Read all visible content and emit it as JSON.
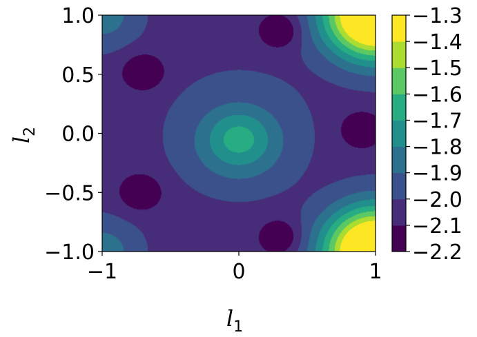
{
  "chart_data": {
    "type": "contourf",
    "title": "",
    "xlabel": "l",
    "xlabel_subscript": "1",
    "ylabel": "l",
    "ylabel_subscript": "2",
    "xlim": [
      -1.0,
      1.0
    ],
    "ylim": [
      -1.0,
      1.0
    ],
    "x_ticks": [
      -1,
      0,
      1
    ],
    "x_tick_labels": [
      "−1",
      "0",
      "1"
    ],
    "y_ticks": [
      -1.0,
      -0.5,
      0.0,
      0.5,
      1.0
    ],
    "y_tick_labels": [
      "−1.0",
      "−0.5",
      "0.0",
      "0.5",
      "1.0"
    ],
    "colorbar": {
      "levels": [
        -2.2,
        -2.1,
        -2.0,
        -1.9,
        -1.8,
        -1.7,
        -1.6,
        -1.5,
        -1.4,
        -1.3
      ],
      "tick_labels": [
        "−2.2",
        "−2.1",
        "−2.0",
        "−1.9",
        "−1.8",
        "−1.7",
        "−1.6",
        "−1.5",
        "−1.4",
        "−1.3"
      ],
      "colors": [
        "#440154",
        "#472c7a",
        "#3b518b",
        "#2c718e",
        "#21908d",
        "#27ad81",
        "#5cc863",
        "#aadc32",
        "#fde725"
      ]
    },
    "contour_features": {
      "central_max": {
        "center": [
          0.0,
          -0.05
        ],
        "value": -1.65
      },
      "minima": [
        {
          "center": [
            0.3,
            0.87
          ],
          "value": -2.15
        },
        {
          "center": [
            -0.7,
            0.52
          ],
          "value": -2.15
        },
        {
          "center": [
            -0.72,
            -0.5
          ],
          "value": -2.15
        },
        {
          "center": [
            0.3,
            -0.88
          ],
          "value": -2.15
        },
        {
          "center": [
            0.9,
            0.03
          ],
          "value": -2.15
        }
      ],
      "corner_max": {
        "value": -1.3,
        "locations": [
          [
            1.0,
            1.0
          ],
          [
            1.0,
            -1.0
          ]
        ]
      }
    },
    "grid": false
  }
}
